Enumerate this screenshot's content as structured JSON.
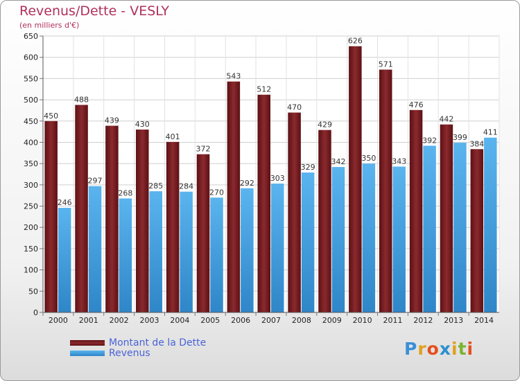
{
  "header": {
    "title": "Revenus/Dette - VESLY",
    "subtitle": "(en milliers d'€)"
  },
  "colors": {
    "dette": "#7b1e22",
    "revenus": "#4aa3e0",
    "title": "#b0305a",
    "legend_text": "#4a63d8"
  },
  "chart_data": {
    "type": "bar",
    "title": "Revenus/Dette - VESLY",
    "subtitle": "(en milliers d'€)",
    "xlabel": "",
    "ylabel": "",
    "categories": [
      "2000",
      "2001",
      "2002",
      "2003",
      "2004",
      "2005",
      "2006",
      "2007",
      "2008",
      "2009",
      "2010",
      "2011",
      "2012",
      "2013",
      "2014"
    ],
    "series": [
      {
        "name": "Montant de la Dette",
        "color": "#7b1e22",
        "values": [
          450,
          488,
          439,
          430,
          401,
          372,
          543,
          512,
          470,
          429,
          626,
          571,
          476,
          442,
          384
        ]
      },
      {
        "name": "Revenus",
        "color": "#4aa3e0",
        "values": [
          246,
          297,
          268,
          285,
          284,
          270,
          292,
          303,
          329,
          342,
          350,
          343,
          392,
          399,
          411
        ]
      }
    ],
    "ylim": [
      0,
      650
    ],
    "yticks": [
      0,
      50,
      100,
      150,
      200,
      250,
      300,
      350,
      400,
      450,
      500,
      550,
      600,
      650
    ],
    "grid": true,
    "legend_position": "bottom-left"
  },
  "legend": {
    "items": [
      {
        "label": "Montant de la Dette",
        "color": "#7b1e22"
      },
      {
        "label": "Revenus",
        "color": "#4aa3e0"
      }
    ]
  },
  "logo": {
    "text": "Proxiti"
  }
}
